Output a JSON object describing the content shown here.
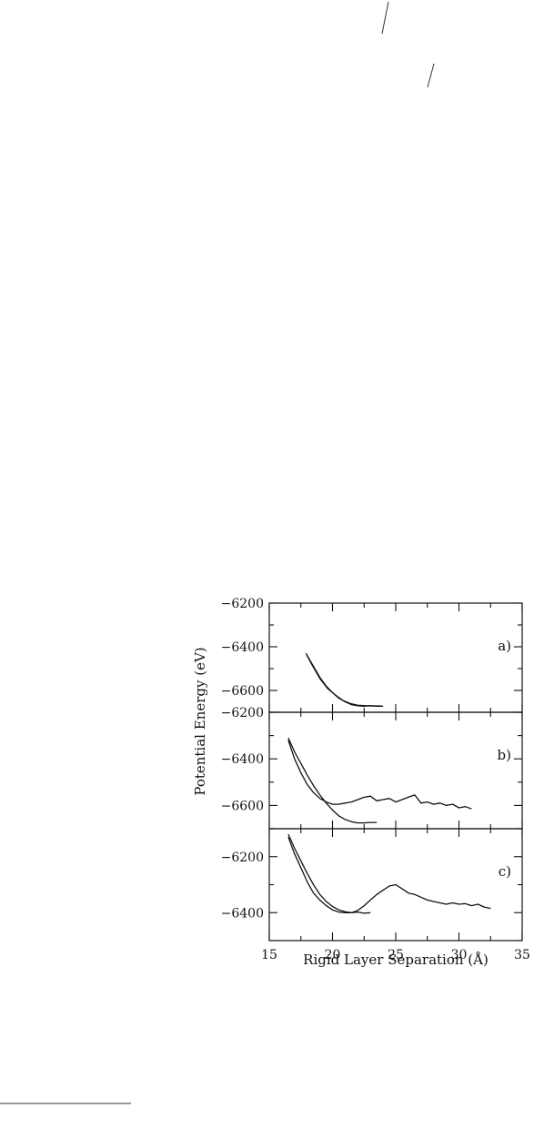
{
  "chart_data": [
    {
      "type": "line",
      "panel_label": "a)",
      "xlim": [
        15,
        35
      ],
      "ylim": [
        -6700,
        -6200
      ],
      "yticks": [
        -6200,
        -6400,
        -6600
      ],
      "series": [
        {
          "x": [
            18.0,
            18.5,
            19.0,
            19.5,
            20.0,
            20.5,
            21.0,
            21.5,
            22.0,
            22.5,
            23.0,
            23.5,
            24.0
          ],
          "y": [
            -6440,
            -6490,
            -6540,
            -6580,
            -6610,
            -6635,
            -6652,
            -6665,
            -6670,
            -6672,
            -6670,
            -6672,
            -6672
          ]
        },
        {
          "x": [
            17.9,
            18.4,
            19.0,
            19.6,
            20.2,
            20.8,
            21.4,
            22.0,
            22.6,
            23.2,
            23.8
          ],
          "y": [
            -6430,
            -6485,
            -6545,
            -6590,
            -6620,
            -6645,
            -6660,
            -6668,
            -6670,
            -6671,
            -6671
          ]
        }
      ]
    },
    {
      "type": "line",
      "panel_label": "b)",
      "xlim": [
        15,
        35
      ],
      "ylim": [
        -6700,
        -6200
      ],
      "yticks": [
        -6200,
        -6400,
        -6600
      ],
      "series": [
        {
          "x": [
            16.5,
            17.0,
            17.5,
            18.0,
            18.5,
            19.0,
            19.5,
            20.0,
            20.5,
            21.0,
            21.5,
            22.0,
            22.5,
            23.0,
            23.5,
            24.0,
            24.5,
            25.0,
            25.5,
            26.0,
            26.5,
            27.0,
            27.5,
            28.0,
            28.5,
            29.0,
            29.5,
            30.0,
            30.5,
            31.0
          ],
          "y": [
            -6320,
            -6400,
            -6460,
            -6510,
            -6545,
            -6570,
            -6585,
            -6595,
            -6595,
            -6590,
            -6585,
            -6575,
            -6565,
            -6560,
            -6580,
            -6575,
            -6570,
            -6585,
            -6575,
            -6565,
            -6555,
            -6590,
            -6585,
            -6595,
            -6590,
            -6600,
            -6595,
            -6610,
            -6605,
            -6615
          ]
        },
        {
          "x": [
            16.5,
            17.0,
            17.5,
            18.0,
            18.5,
            19.0,
            19.5,
            20.0,
            20.5,
            21.0,
            21.5,
            22.0,
            22.5,
            23.0,
            23.5
          ],
          "y": [
            -6310,
            -6370,
            -6420,
            -6470,
            -6515,
            -6555,
            -6590,
            -6620,
            -6645,
            -6660,
            -6670,
            -6675,
            -6675,
            -6673,
            -6673
          ]
        }
      ]
    },
    {
      "type": "line",
      "panel_label": "c)",
      "xlim": [
        15,
        35
      ],
      "ylim": [
        -6500,
        -6100
      ],
      "yticks": [
        -6200,
        -6400
      ],
      "series": [
        {
          "x": [
            16.5,
            17.0,
            17.5,
            18.0,
            18.5,
            19.0,
            19.5,
            20.0,
            20.5,
            21.0,
            21.5,
            22.0,
            22.5,
            23.0
          ],
          "y": [
            -6130,
            -6190,
            -6240,
            -6290,
            -6330,
            -6355,
            -6375,
            -6390,
            -6398,
            -6400,
            -6400,
            -6398,
            -6402,
            -6400
          ]
        },
        {
          "x": [
            16.5,
            17.0,
            17.5,
            18.0,
            18.5,
            19.0,
            19.5,
            20.0,
            20.5,
            21.0,
            21.5,
            22.0,
            22.5,
            23.0,
            23.5,
            24.0,
            24.5,
            25.0,
            25.5,
            26.0,
            26.5,
            27.0,
            27.5,
            28.0,
            28.5,
            29.0,
            29.5,
            30.0,
            30.5,
            31.0,
            31.5,
            32.0,
            32.5
          ],
          "y": [
            -6120,
            -6170,
            -6215,
            -6260,
            -6300,
            -6335,
            -6360,
            -6378,
            -6390,
            -6397,
            -6400,
            -6392,
            -6375,
            -6355,
            -6335,
            -6320,
            -6305,
            -6300,
            -6315,
            -6330,
            -6335,
            -6345,
            -6355,
            -6360,
            -6365,
            -6370,
            -6365,
            -6370,
            -6368,
            -6375,
            -6370,
            -6380,
            -6385
          ]
        }
      ]
    }
  ],
  "axes": {
    "ylabel": "Potential Energy (eV)",
    "xlabel": "Rigid Layer Separation (Å)",
    "xticks": [
      15,
      20,
      25,
      30,
      35
    ]
  }
}
